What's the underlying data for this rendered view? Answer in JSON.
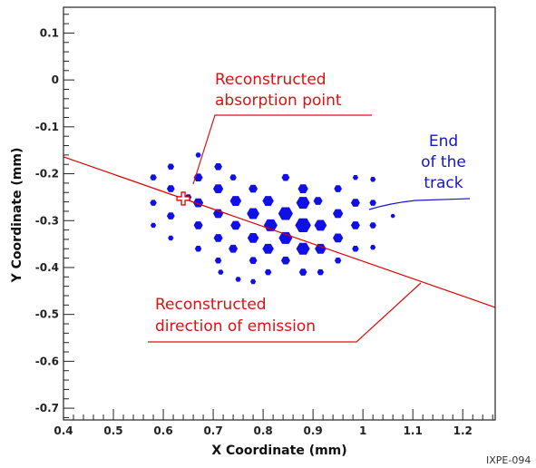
{
  "chart_data": {
    "type": "scatter",
    "xlabel": "X Coordinate (mm)",
    "ylabel": "Y Coordinate (mm)",
    "xlim": [
      0.4,
      1.265
    ],
    "ylim": [
      -0.725,
      0.155
    ],
    "x_ticks": [
      "0.4",
      "0.5",
      "0.6",
      "0.7",
      "0.8",
      "0.9",
      "1",
      "1.1",
      "1.2"
    ],
    "y_ticks": [
      "0.1",
      "0",
      "-0.1",
      "-0.2",
      "-0.3",
      "-0.4",
      "-0.5",
      "-0.6",
      "-0.7"
    ],
    "grid": false,
    "colors": {
      "pixels": "#1010e6",
      "fit_line": "#e00000",
      "annot_red": "#dd1111",
      "annot_blue": "#1515c8",
      "frame": "#222222"
    },
    "points": [
      {
        "x": 0.58,
        "y": -0.208,
        "s": 6
      },
      {
        "x": 0.58,
        "y": -0.262,
        "s": 6
      },
      {
        "x": 0.58,
        "y": -0.31,
        "s": 5
      },
      {
        "x": 0.615,
        "y": -0.185,
        "s": 6
      },
      {
        "x": 0.615,
        "y": -0.232,
        "s": 7
      },
      {
        "x": 0.615,
        "y": -0.29,
        "s": 7
      },
      {
        "x": 0.615,
        "y": -0.337,
        "s": 5
      },
      {
        "x": 0.65,
        "y": -0.25,
        "s": 6
      },
      {
        "x": 0.67,
        "y": -0.16,
        "s": 5
      },
      {
        "x": 0.67,
        "y": -0.208,
        "s": 8
      },
      {
        "x": 0.67,
        "y": -0.262,
        "s": 9
      },
      {
        "x": 0.67,
        "y": -0.31,
        "s": 8
      },
      {
        "x": 0.67,
        "y": -0.36,
        "s": 6
      },
      {
        "x": 0.71,
        "y": -0.185,
        "s": 7
      },
      {
        "x": 0.71,
        "y": -0.232,
        "s": 9
      },
      {
        "x": 0.71,
        "y": -0.285,
        "s": 9
      },
      {
        "x": 0.71,
        "y": -0.337,
        "s": 8
      },
      {
        "x": 0.71,
        "y": -0.385,
        "s": 6
      },
      {
        "x": 0.74,
        "y": -0.208,
        "s": 6
      },
      {
        "x": 0.745,
        "y": -0.258,
        "s": 10
      },
      {
        "x": 0.745,
        "y": -0.31,
        "s": 9
      },
      {
        "x": 0.74,
        "y": -0.36,
        "s": 8
      },
      {
        "x": 0.715,
        "y": -0.41,
        "s": 5
      },
      {
        "x": 0.75,
        "y": -0.425,
        "s": 5
      },
      {
        "x": 0.78,
        "y": -0.232,
        "s": 8
      },
      {
        "x": 0.78,
        "y": -0.285,
        "s": 11
      },
      {
        "x": 0.78,
        "y": -0.337,
        "s": 10
      },
      {
        "x": 0.78,
        "y": -0.385,
        "s": 7
      },
      {
        "x": 0.78,
        "y": -0.43,
        "s": 5
      },
      {
        "x": 0.81,
        "y": -0.258,
        "s": 10
      },
      {
        "x": 0.815,
        "y": -0.31,
        "s": 12
      },
      {
        "x": 0.81,
        "y": -0.36,
        "s": 10
      },
      {
        "x": 0.81,
        "y": -0.41,
        "s": 6
      },
      {
        "x": 0.845,
        "y": -0.208,
        "s": 7
      },
      {
        "x": 0.845,
        "y": -0.285,
        "s": 13
      },
      {
        "x": 0.845,
        "y": -0.337,
        "s": 12
      },
      {
        "x": 0.845,
        "y": -0.385,
        "s": 8
      },
      {
        "x": 0.88,
        "y": -0.232,
        "s": 9
      },
      {
        "x": 0.88,
        "y": -0.262,
        "s": 12
      },
      {
        "x": 0.88,
        "y": -0.31,
        "s": 14
      },
      {
        "x": 0.88,
        "y": -0.36,
        "s": 12
      },
      {
        "x": 0.88,
        "y": -0.41,
        "s": 7
      },
      {
        "x": 0.91,
        "y": -0.258,
        "s": 8
      },
      {
        "x": 0.915,
        "y": -0.31,
        "s": 11
      },
      {
        "x": 0.915,
        "y": -0.36,
        "s": 10
      },
      {
        "x": 0.915,
        "y": -0.41,
        "s": 6
      },
      {
        "x": 0.95,
        "y": -0.232,
        "s": 7
      },
      {
        "x": 0.95,
        "y": -0.285,
        "s": 9
      },
      {
        "x": 0.95,
        "y": -0.337,
        "s": 9
      },
      {
        "x": 0.95,
        "y": -0.385,
        "s": 6
      },
      {
        "x": 0.985,
        "y": -0.208,
        "s": 5
      },
      {
        "x": 0.985,
        "y": -0.262,
        "s": 8
      },
      {
        "x": 0.985,
        "y": -0.31,
        "s": 8
      },
      {
        "x": 0.985,
        "y": -0.36,
        "s": 6
      },
      {
        "x": 1.02,
        "y": -0.212,
        "s": 5
      },
      {
        "x": 1.02,
        "y": -0.262,
        "s": 6
      },
      {
        "x": 1.02,
        "y": -0.31,
        "s": 6
      },
      {
        "x": 1.02,
        "y": -0.357,
        "s": 5
      },
      {
        "x": 1.06,
        "y": -0.29,
        "s": 4
      }
    ],
    "fit_line": {
      "x": [
        0.4,
        1.265
      ],
      "y": [
        -0.164,
        -0.485
      ]
    },
    "absorption_point": {
      "x": 0.64,
      "y": -0.253
    },
    "annotations": [
      {
        "id": "absorption",
        "lines": [
          "Reconstructed",
          "absorption point"
        ],
        "color": "#dd1111"
      },
      {
        "id": "emission",
        "lines": [
          "Reconstructed",
          "direction of emission"
        ],
        "color": "#dd1111"
      },
      {
        "id": "end",
        "lines": [
          "End",
          "of the",
          "track"
        ],
        "color": "#1515c8"
      }
    ],
    "tag": "IXPE-094"
  }
}
